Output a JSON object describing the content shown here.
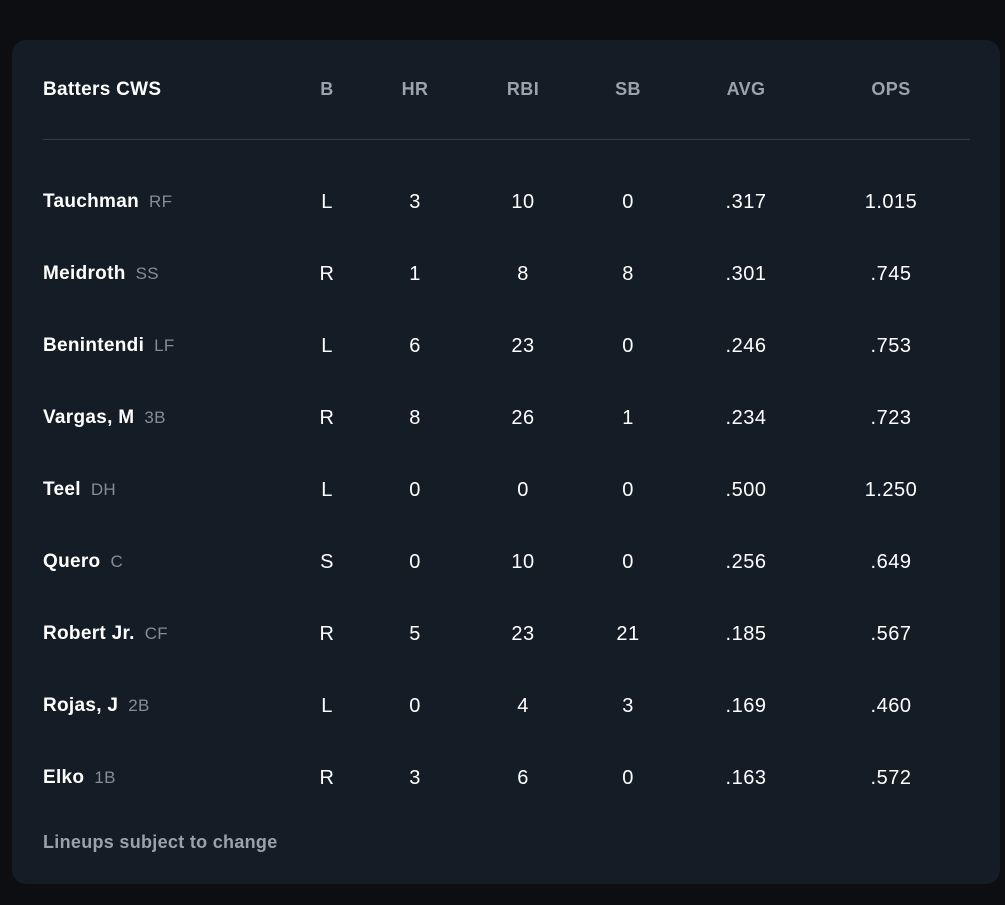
{
  "table": {
    "title": "Batters CWS",
    "columns": [
      "B",
      "HR",
      "RBI",
      "SB",
      "AVG",
      "OPS"
    ],
    "rows": [
      {
        "name": "Tauchman",
        "position": "RF",
        "stats": [
          "L",
          "3",
          "10",
          "0",
          ".317",
          "1.015"
        ]
      },
      {
        "name": "Meidroth",
        "position": "SS",
        "stats": [
          "R",
          "1",
          "8",
          "8",
          ".301",
          ".745"
        ]
      },
      {
        "name": "Benintendi",
        "position": "LF",
        "stats": [
          "L",
          "6",
          "23",
          "0",
          ".246",
          ".753"
        ]
      },
      {
        "name": "Vargas, M",
        "position": "3B",
        "stats": [
          "R",
          "8",
          "26",
          "1",
          ".234",
          ".723"
        ]
      },
      {
        "name": "Teel",
        "position": "DH",
        "stats": [
          "L",
          "0",
          "0",
          "0",
          ".500",
          "1.250"
        ]
      },
      {
        "name": "Quero",
        "position": "C",
        "stats": [
          "S",
          "0",
          "10",
          "0",
          ".256",
          ".649"
        ]
      },
      {
        "name": "Robert Jr.",
        "position": "CF",
        "stats": [
          "R",
          "5",
          "23",
          "21",
          ".185",
          ".567"
        ]
      },
      {
        "name": "Rojas, J",
        "position": "2B",
        "stats": [
          "L",
          "0",
          "4",
          "3",
          ".169",
          ".460"
        ]
      },
      {
        "name": "Elko",
        "position": "1B",
        "stats": [
          "R",
          "3",
          "6",
          "0",
          ".163",
          ".572"
        ]
      }
    ],
    "footer_note": "Lineups subject to change"
  },
  "colors": {
    "page_bg": "#0d0e12",
    "card_bg": "#141c26",
    "divider": "#2e3d4c",
    "header_text": "#9aa3ad",
    "muted_text": "#848d96",
    "primary_text": "#ffffff"
  }
}
